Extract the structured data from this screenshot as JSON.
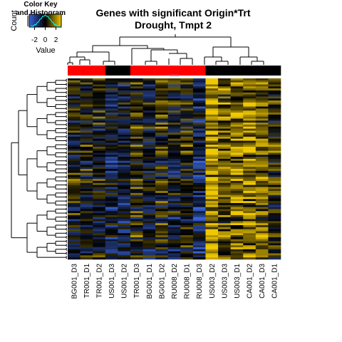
{
  "chart_data": {
    "type": "heatmap",
    "title_line1": "Genes with significant Origin*Trt",
    "title_line2": "Drought, Tmpt 2",
    "color_key": {
      "title_line1": "Color Key",
      "title_line2": "and Histogram",
      "ylabel": "Count",
      "xlabel": "Value",
      "ticks": [
        "-2",
        "0",
        "2"
      ],
      "range": [
        -3,
        3
      ]
    },
    "colors": {
      "low": "#3a63d6",
      "mid": "#000000",
      "high": "#f0c800",
      "group_red": "#ff0000",
      "group_black": "#000000",
      "group_blue": "#7f8fd8"
    },
    "columns": [
      "BG001_D3",
      "TR001_D1",
      "TR001_D2",
      "US001_D3",
      "US001_D2",
      "TR001_D3",
      "BG001_D1",
      "BG001_D2",
      "RU008_D2",
      "RU008_D1",
      "RU008_D3",
      "US003_D2",
      "US003_D3",
      "US003_D1",
      "CA001_D2",
      "CA001_D3",
      "CA001_D1"
    ],
    "column_groups": [
      "red",
      "red",
      "red",
      "black",
      "black",
      "red",
      "red",
      "red",
      "red",
      "red",
      "red",
      "black",
      "black",
      "black",
      "black",
      "black",
      "black"
    ],
    "n_rows": 90,
    "column_profiles": [
      0.0,
      0.0,
      -0.1,
      -0.5,
      -0.4,
      0.2,
      -0.3,
      0.1,
      -0.2,
      0.1,
      -0.6,
      1.1,
      0.6,
      0.8,
      0.9,
      0.7,
      0.2
    ]
  }
}
